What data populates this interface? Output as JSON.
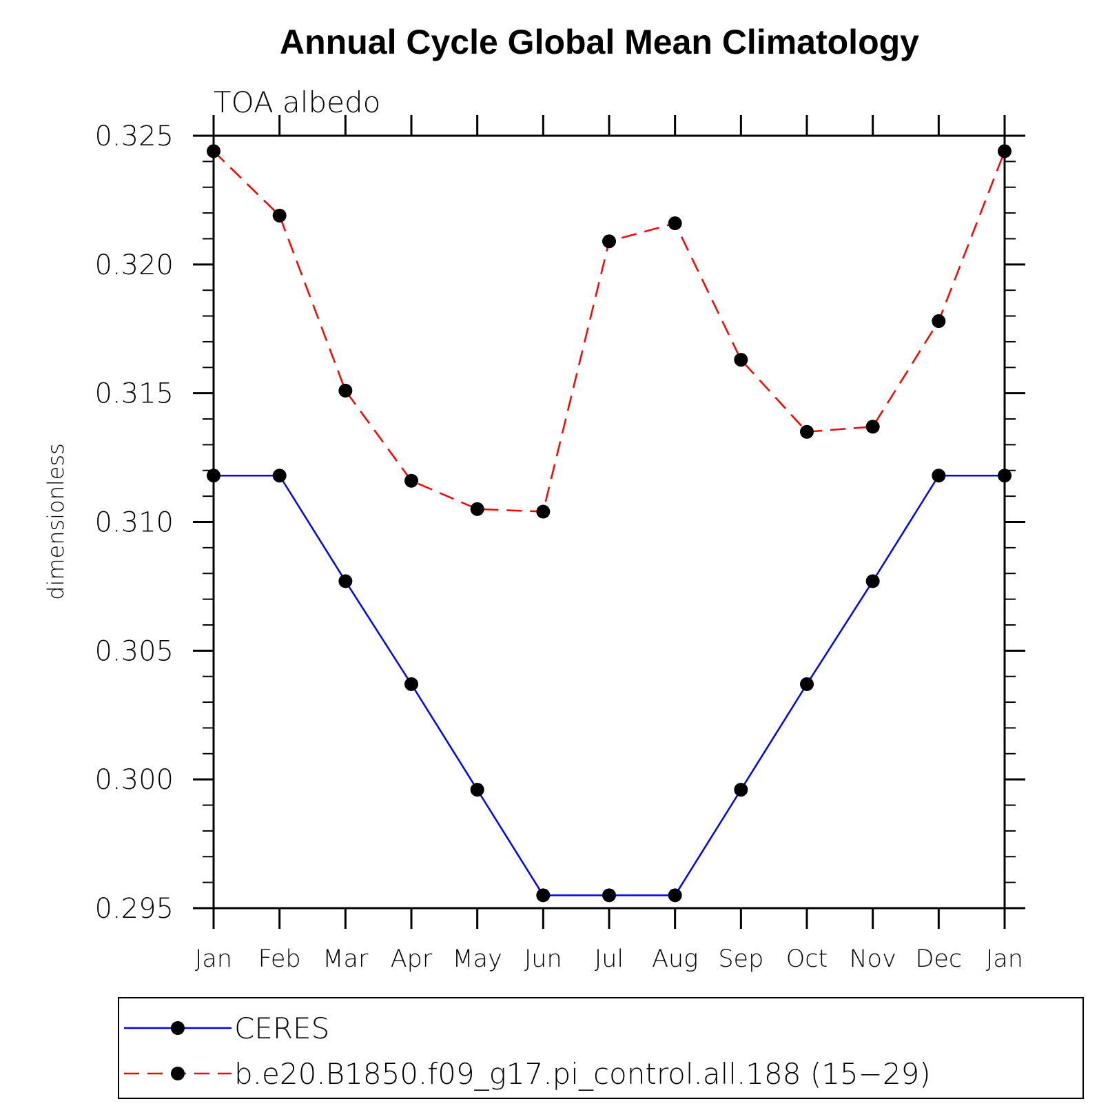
{
  "chart_data": {
    "type": "line",
    "title": "Annual Cycle Global Mean Climatology",
    "subtitle": "TOA albedo",
    "ylabel": "dimensionless",
    "xlabel": "",
    "categories": [
      "Jan",
      "Feb",
      "Mar",
      "Apr",
      "May",
      "Jun",
      "Jul",
      "Aug",
      "Sep",
      "Oct",
      "Nov",
      "Dec",
      "Jan"
    ],
    "ylim": [
      0.295,
      0.325
    ],
    "yticks": [
      0.295,
      0.3,
      0.305,
      0.31,
      0.315,
      0.32,
      0.325
    ],
    "ytick_labels": [
      "0.295",
      "0.300",
      "0.305",
      "0.310",
      "0.315",
      "0.320",
      "0.325"
    ],
    "grid": false,
    "legend_position": "bottom",
    "series": [
      {
        "name": "CERES",
        "color": "#0000ff",
        "line_style": "solid",
        "marker": "filled-circle",
        "values": [
          0.3118,
          0.3118,
          0.3077,
          0.3037,
          0.2996,
          0.2955,
          0.2955,
          0.2955,
          0.2996,
          0.3037,
          0.3077,
          0.3118,
          0.3118
        ]
      },
      {
        "name": "b.e20.B1850.f09_g17.pi_control.all.188 (15−29)",
        "color": "#ff0000",
        "line_style": "dashed",
        "marker": "filled-circle",
        "values": [
          0.3244,
          0.3219,
          0.3151,
          0.3116,
          0.3105,
          0.3104,
          0.3209,
          0.3216,
          0.3163,
          0.3135,
          0.3137,
          0.3178,
          0.3244
        ]
      }
    ]
  }
}
